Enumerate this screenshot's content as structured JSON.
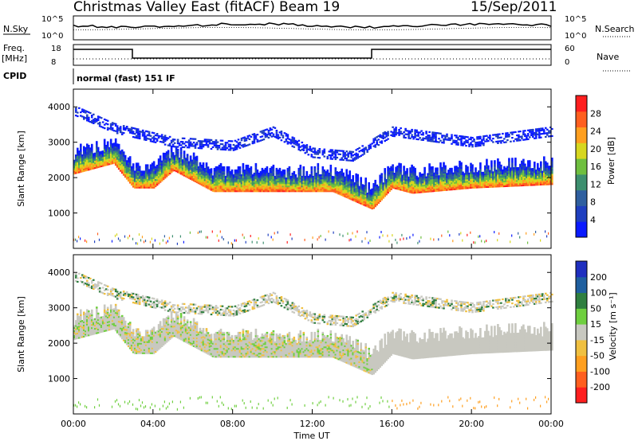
{
  "header": {
    "station": "Christmas Valley East (fitACF)",
    "beam": "Beam 19",
    "date": "15/Sep/2011"
  },
  "top_panel": {
    "left_label": "N.Sky",
    "right_label": "N.Search",
    "left_ticks": [
      "10^5",
      "10^0"
    ],
    "right_ticks": [
      "10^5",
      "10^0"
    ]
  },
  "freq_panel": {
    "left_label_1": "Freq.",
    "left_label_2": "[MHz]",
    "right_label": "Nave",
    "left_ticks": [
      "18",
      "8"
    ],
    "right_ticks": [
      "60",
      "0"
    ]
  },
  "cpid": {
    "label": "CPID",
    "text": "normal (fast) 151 IF"
  },
  "x_axis": {
    "label": "Time UT",
    "ticks": [
      "00:00",
      "04:00",
      "08:00",
      "12:00",
      "16:00",
      "20:00",
      "00:00"
    ]
  },
  "power_panel": {
    "ylabel": "Slant Range [km]",
    "yticks": [
      "1000",
      "2000",
      "3000",
      "4000"
    ],
    "colorbar_label": "Power [dB]",
    "colorbar_ticks": [
      "4",
      "8",
      "12",
      "16",
      "20",
      "24",
      "28"
    ]
  },
  "velocity_panel": {
    "ylabel": "Slant Range [km]",
    "yticks": [
      "1000",
      "2000",
      "3000",
      "4000"
    ],
    "colorbar_label": "Velocity [m s⁻¹]",
    "colorbar_ticks": [
      "200",
      "100",
      "50",
      "15",
      "-15",
      "-50",
      "-100",
      "-200"
    ]
  },
  "colors": {
    "power_scale": [
      "#0a1aff",
      "#1f3fbf",
      "#2f5f9f",
      "#3d8f6f",
      "#6fbf3f",
      "#d7d71f",
      "#ff9f1f",
      "#ff5f1f",
      "#ff1f1f"
    ],
    "velocity_scale": [
      "#1f2fbf",
      "#1f5f9f",
      "#2f7f3f",
      "#6fcf3f",
      "#c8c8c0",
      "#f0c040",
      "#ff9f1f",
      "#ff5f1f",
      "#ff1f1f"
    ]
  },
  "chart_data": [
    {
      "type": "heatmap",
      "title": "Power",
      "xlabel": "Time UT",
      "ylabel": "Slant Range [km]",
      "xlim": [
        "00:00",
        "24:00"
      ],
      "ylim": [
        0,
        4500
      ],
      "colorbar": {
        "label": "Power [dB]",
        "range": [
          0,
          30
        ]
      },
      "echo_bands": [
        {
          "name": "main_lower",
          "points": [
            [
              "00:00",
              2100
            ],
            [
              "02:00",
              2400
            ],
            [
              "03:00",
              1700
            ],
            [
              "04:00",
              1700
            ],
            [
              "05:00",
              2200
            ],
            [
              "06:00",
              1900
            ],
            [
              "07:00",
              1600
            ],
            [
              "13:00",
              1600
            ],
            [
              "15:00",
              1100
            ],
            [
              "16:00",
              1700
            ],
            [
              "17:00",
              1550
            ],
            [
              "20:00",
              1700
            ],
            [
              "24:00",
              1800
            ]
          ]
        },
        {
          "name": "upper",
          "points": [
            [
              "00:00",
              3900
            ],
            [
              "02:00",
              3400
            ],
            [
              "05:00",
              3000
            ],
            [
              "08:00",
              2900
            ],
            [
              "10:00",
              3300
            ],
            [
              "12:00",
              2700
            ],
            [
              "14:00",
              2600
            ],
            [
              "16:00",
              3300
            ],
            [
              "20:00",
              3000
            ],
            [
              "24:00",
              3300
            ]
          ]
        }
      ]
    },
    {
      "type": "heatmap",
      "title": "Velocity",
      "xlabel": "Time UT",
      "ylabel": "Slant Range [km]",
      "xlim": [
        "00:00",
        "24:00"
      ],
      "ylim": [
        0,
        4500
      ],
      "colorbar": {
        "label": "Velocity [m s⁻¹]",
        "range": [
          -200,
          200
        ]
      }
    }
  ]
}
